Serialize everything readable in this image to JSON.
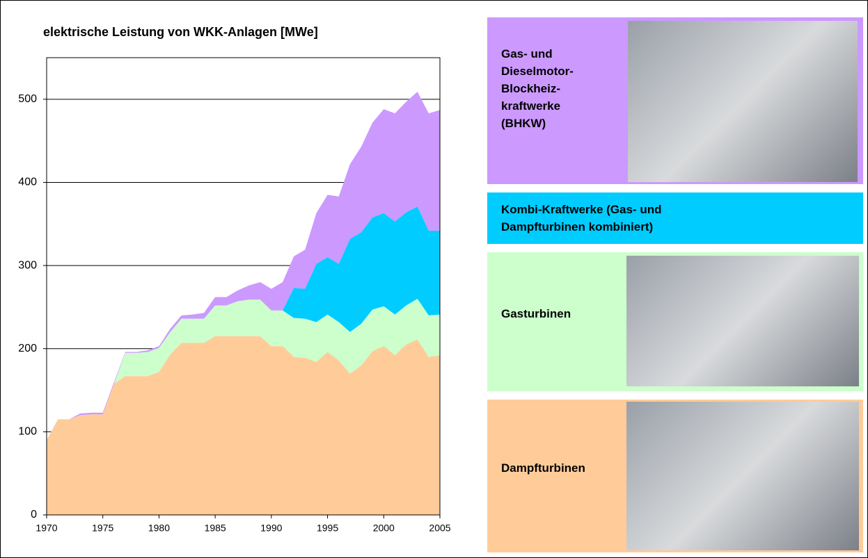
{
  "chart_data": {
    "type": "stacked_area",
    "title": "elektrische Leistung von WKK-Anlagen  [MWe]",
    "x": [
      1970,
      1971,
      1972,
      1973,
      1974,
      1975,
      1976,
      1977,
      1978,
      1979,
      1980,
      1981,
      1982,
      1983,
      1984,
      1985,
      1986,
      1987,
      1988,
      1989,
      1990,
      1991,
      1992,
      1993,
      1994,
      1995,
      1996,
      1997,
      1998,
      1999,
      2000,
      2001,
      2002,
      2003,
      2004,
      2005
    ],
    "xlim": [
      1970,
      2005
    ],
    "xticks": [
      1970,
      1975,
      1980,
      1985,
      1990,
      1995,
      2000,
      2005
    ],
    "ylim": [
      0,
      550
    ],
    "yticks": [
      0,
      100,
      200,
      300,
      400,
      500
    ],
    "grid": true,
    "series": [
      {
        "name": "Dampfturbinen",
        "color": "#ffcc99",
        "values": [
          90,
          115,
          115,
          120,
          121,
          121,
          158,
          167,
          167,
          167,
          172,
          193,
          207,
          207,
          207,
          215,
          215,
          215,
          215,
          215,
          203,
          203,
          190,
          189,
          184,
          196,
          186,
          170,
          180,
          197,
          203,
          192,
          205,
          211,
          190,
          192
        ]
      },
      {
        "name": "Gasturbinen",
        "color": "#ccffcc",
        "values": [
          0,
          0,
          0,
          0,
          0,
          0,
          0,
          28,
          28,
          29,
          29,
          27,
          29,
          29,
          29,
          37,
          37,
          42,
          44,
          44,
          43,
          43,
          47,
          47,
          48,
          45,
          46,
          50,
          50,
          50,
          48,
          49,
          47,
          49,
          50,
          49
        ]
      },
      {
        "name": "Kombi-Kraftwerke (Gas- und Dampfturbinen kombiniert)",
        "color": "#00ccff",
        "values": [
          0,
          0,
          0,
          0,
          0,
          0,
          0,
          0,
          0,
          0,
          0,
          0,
          0,
          0,
          0,
          0,
          0,
          0,
          0,
          0,
          0,
          0,
          36,
          36,
          70,
          69,
          70,
          112,
          110,
          111,
          112,
          112,
          112,
          111,
          102,
          101
        ]
      },
      {
        "name": "Gas- und Dieselmotor-Blockheiz-kraftwerke (BHKW)",
        "color": "#cc99ff",
        "values": [
          0,
          0,
          0,
          2,
          2,
          2,
          2,
          1,
          1,
          2,
          2,
          4,
          4,
          5,
          7,
          10,
          10,
          13,
          17,
          21,
          26,
          34,
          38,
          47,
          61,
          75,
          81,
          90,
          103,
          114,
          125,
          130,
          133,
          138,
          141,
          145
        ]
      }
    ]
  }
}
